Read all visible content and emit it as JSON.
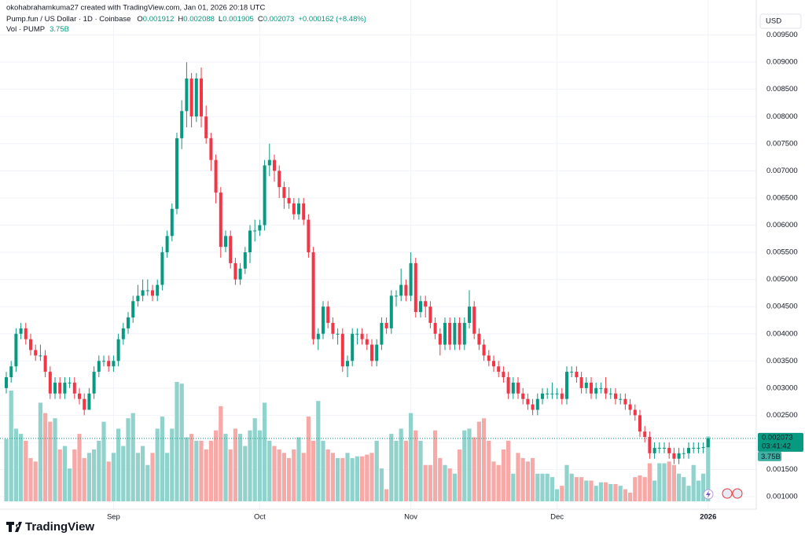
{
  "chart_data": {
    "type": "candlestick",
    "header": {
      "watermark": "okohabrahamkuma27 created with TradingView.com, Jan 01, 2026 20:18 UTC",
      "symbol": "Pump.fun / US Dollar · 1D · Coinbase",
      "ohlc": [
        {
          "label": "O",
          "value": "0.001912"
        },
        {
          "label": "H",
          "value": "0.002088"
        },
        {
          "label": "L",
          "value": "0.001905"
        },
        {
          "label": "C",
          "value": "0.002073"
        }
      ],
      "change": "+0.000162 (+8.48%)",
      "volume_name": "Vol · PUMP",
      "volume_value": "3.75B"
    },
    "currency": "USD",
    "brand": "TradingView",
    "up_color": "#089981",
    "down_color": "#f23645",
    "up_volume_color": "#92d2cc",
    "down_volume_color": "#f7a9a7",
    "grid": true,
    "ylim": [
      0.00077,
      0.01
    ],
    "yticks": [
      {
        "value": 0.001,
        "label": "0.001000"
      },
      {
        "value": 0.0015,
        "label": "0.001500"
      },
      {
        "value": 0.002,
        "label": "0.002000"
      },
      {
        "value": 0.0025,
        "label": "0.002500"
      },
      {
        "value": 0.003,
        "label": "0.003000"
      },
      {
        "value": 0.0035,
        "label": "0.003500"
      },
      {
        "value": 0.004,
        "label": "0.004000"
      },
      {
        "value": 0.0045,
        "label": "0.004500"
      },
      {
        "value": 0.005,
        "label": "0.005000"
      },
      {
        "value": 0.0055,
        "label": "0.005500"
      },
      {
        "value": 0.006,
        "label": "0.006000"
      },
      {
        "value": 0.0065,
        "label": "0.006500"
      },
      {
        "value": 0.007,
        "label": "0.007000"
      },
      {
        "value": 0.0075,
        "label": "0.007500"
      },
      {
        "value": 0.008,
        "label": "0.008000"
      },
      {
        "value": 0.0085,
        "label": "0.008500"
      },
      {
        "value": 0.009,
        "label": "0.009000"
      },
      {
        "value": 0.0095,
        "label": "0.009500"
      }
    ],
    "xticks": [
      {
        "value": 22,
        "label": "Sep"
      },
      {
        "value": 52,
        "label": "Oct"
      },
      {
        "value": 83,
        "label": "Nov"
      },
      {
        "value": 113,
        "label": "Dec"
      },
      {
        "value": 144,
        "label": "2026"
      }
    ],
    "last_price_label": "0.002073",
    "countdown": "03:41:42",
    "last_volume_label": "3.75B",
    "candles": [
      [
        0.003,
        0.0033,
        0.0029,
        0.0032
      ],
      [
        0.0032,
        0.0035,
        0.0031,
        0.0034
      ],
      [
        0.0034,
        0.0041,
        0.0033,
        0.004
      ],
      [
        0.004,
        0.0042,
        0.0039,
        0.0041
      ],
      [
        0.0041,
        0.0042,
        0.0038,
        0.0039
      ],
      [
        0.0039,
        0.004,
        0.0036,
        0.0037
      ],
      [
        0.0037,
        0.0038,
        0.0035,
        0.0036
      ],
      [
        0.0036,
        0.0038,
        0.0035,
        0.0036
      ],
      [
        0.0036,
        0.0037,
        0.0032,
        0.0033
      ],
      [
        0.0033,
        0.0034,
        0.0028,
        0.0029
      ],
      [
        0.0029,
        0.0032,
        0.0028,
        0.0031
      ],
      [
        0.0031,
        0.0032,
        0.0028,
        0.0029
      ],
      [
        0.0029,
        0.0032,
        0.0028,
        0.0031
      ],
      [
        0.0031,
        0.0032,
        0.003,
        0.0031
      ],
      [
        0.0031,
        0.0032,
        0.0028,
        0.0029
      ],
      [
        0.0029,
        0.003,
        0.0027,
        0.0028
      ],
      [
        0.0028,
        0.0029,
        0.0025,
        0.0026
      ],
      [
        0.0026,
        0.003,
        0.0026,
        0.0029
      ],
      [
        0.0029,
        0.0034,
        0.0028,
        0.0033
      ],
      [
        0.0033,
        0.0036,
        0.0032,
        0.0035
      ],
      [
        0.0035,
        0.0036,
        0.0034,
        0.0035
      ],
      [
        0.0035,
        0.0036,
        0.0033,
        0.0034
      ],
      [
        0.0034,
        0.0036,
        0.0033,
        0.0035
      ],
      [
        0.0035,
        0.004,
        0.0034,
        0.0039
      ],
      [
        0.0039,
        0.0042,
        0.0038,
        0.0041
      ],
      [
        0.0041,
        0.0044,
        0.004,
        0.0043
      ],
      [
        0.0043,
        0.0047,
        0.0042,
        0.0046
      ],
      [
        0.0046,
        0.0049,
        0.0045,
        0.0047
      ],
      [
        0.0047,
        0.005,
        0.0046,
        0.0048
      ],
      [
        0.0048,
        0.005,
        0.0047,
        0.0048
      ],
      [
        0.0048,
        0.0049,
        0.0046,
        0.0047
      ],
      [
        0.0047,
        0.005,
        0.0046,
        0.0049
      ],
      [
        0.0049,
        0.0056,
        0.0048,
        0.0055
      ],
      [
        0.0055,
        0.0059,
        0.0054,
        0.0058
      ],
      [
        0.0058,
        0.0064,
        0.0057,
        0.0063
      ],
      [
        0.0063,
        0.0077,
        0.0062,
        0.0076
      ],
      [
        0.0076,
        0.0083,
        0.0074,
        0.0081
      ],
      [
        0.0081,
        0.009,
        0.0078,
        0.0087
      ],
      [
        0.0087,
        0.0088,
        0.0078,
        0.008
      ],
      [
        0.008,
        0.0088,
        0.0079,
        0.0087
      ],
      [
        0.0087,
        0.0089,
        0.0078,
        0.008
      ],
      [
        0.008,
        0.0082,
        0.0075,
        0.0076
      ],
      [
        0.0076,
        0.0077,
        0.007,
        0.0072
      ],
      [
        0.0072,
        0.0073,
        0.0064,
        0.0066
      ],
      [
        0.0066,
        0.0067,
        0.0054,
        0.0056
      ],
      [
        0.0056,
        0.0059,
        0.0055,
        0.0058
      ],
      [
        0.0058,
        0.0059,
        0.0052,
        0.0053
      ],
      [
        0.0053,
        0.0054,
        0.0049,
        0.005
      ],
      [
        0.005,
        0.0053,
        0.0049,
        0.0052
      ],
      [
        0.0052,
        0.0056,
        0.0051,
        0.0055
      ],
      [
        0.0055,
        0.006,
        0.0053,
        0.0059
      ],
      [
        0.0059,
        0.0061,
        0.0057,
        0.0059
      ],
      [
        0.0059,
        0.0061,
        0.0058,
        0.006
      ],
      [
        0.006,
        0.0072,
        0.0059,
        0.0071
      ],
      [
        0.0071,
        0.0075,
        0.0069,
        0.0072
      ],
      [
        0.0072,
        0.0073,
        0.0068,
        0.007
      ],
      [
        0.007,
        0.0071,
        0.0065,
        0.0067
      ],
      [
        0.0067,
        0.0068,
        0.0063,
        0.0065
      ],
      [
        0.0065,
        0.0067,
        0.0063,
        0.0064
      ],
      [
        0.0064,
        0.0065,
        0.0061,
        0.0062
      ],
      [
        0.0062,
        0.0065,
        0.0061,
        0.0064
      ],
      [
        0.0064,
        0.0065,
        0.006,
        0.0061
      ],
      [
        0.0061,
        0.0062,
        0.0054,
        0.0055
      ],
      [
        0.0055,
        0.0056,
        0.0038,
        0.0039
      ],
      [
        0.0039,
        0.0041,
        0.0037,
        0.004
      ],
      [
        0.004,
        0.0046,
        0.0039,
        0.0045
      ],
      [
        0.0045,
        0.0046,
        0.0041,
        0.0042
      ],
      [
        0.0042,
        0.0043,
        0.0039,
        0.004
      ],
      [
        0.004,
        0.0041,
        0.0038,
        0.004
      ],
      [
        0.004,
        0.0041,
        0.0033,
        0.0034
      ],
      [
        0.0034,
        0.0036,
        0.0032,
        0.0035
      ],
      [
        0.0035,
        0.0041,
        0.0034,
        0.004
      ],
      [
        0.004,
        0.0041,
        0.0038,
        0.004
      ],
      [
        0.004,
        0.0041,
        0.0038,
        0.0039
      ],
      [
        0.0039,
        0.004,
        0.0037,
        0.0038
      ],
      [
        0.0038,
        0.0039,
        0.0034,
        0.0035
      ],
      [
        0.0035,
        0.0039,
        0.0034,
        0.0038
      ],
      [
        0.0038,
        0.0043,
        0.0037,
        0.0042
      ],
      [
        0.0042,
        0.0043,
        0.004,
        0.0041
      ],
      [
        0.0041,
        0.0048,
        0.004,
        0.0047
      ],
      [
        0.0047,
        0.0048,
        0.0045,
        0.0047
      ],
      [
        0.0047,
        0.0052,
        0.0046,
        0.0049
      ],
      [
        0.0049,
        0.005,
        0.0046,
        0.0047
      ],
      [
        0.0047,
        0.0055,
        0.0046,
        0.0053
      ],
      [
        0.0053,
        0.0054,
        0.0043,
        0.0044
      ],
      [
        0.0044,
        0.0047,
        0.0043,
        0.0046
      ],
      [
        0.0046,
        0.0047,
        0.0043,
        0.0045
      ],
      [
        0.0045,
        0.0046,
        0.0041,
        0.0042
      ],
      [
        0.0042,
        0.0043,
        0.0039,
        0.004
      ],
      [
        0.004,
        0.0041,
        0.0036,
        0.0038
      ],
      [
        0.0038,
        0.0043,
        0.0037,
        0.0042
      ],
      [
        0.0042,
        0.0043,
        0.0037,
        0.0038
      ],
      [
        0.0038,
        0.0043,
        0.0037,
        0.0042
      ],
      [
        0.0042,
        0.0043,
        0.0037,
        0.0038
      ],
      [
        0.0038,
        0.0043,
        0.0037,
        0.0042
      ],
      [
        0.0042,
        0.0048,
        0.0041,
        0.0045
      ],
      [
        0.0045,
        0.0046,
        0.0039,
        0.004
      ],
      [
        0.004,
        0.0041,
        0.0037,
        0.0038
      ],
      [
        0.0038,
        0.0039,
        0.0035,
        0.0036
      ],
      [
        0.0036,
        0.0037,
        0.0034,
        0.0035
      ],
      [
        0.0035,
        0.0036,
        0.0033,
        0.0034
      ],
      [
        0.0034,
        0.0035,
        0.0032,
        0.0033
      ],
      [
        0.0033,
        0.0034,
        0.0031,
        0.0032
      ],
      [
        0.0032,
        0.0033,
        0.0028,
        0.0029
      ],
      [
        0.0029,
        0.0032,
        0.0028,
        0.0031
      ],
      [
        0.0031,
        0.0032,
        0.0028,
        0.0029
      ],
      [
        0.0029,
        0.003,
        0.0027,
        0.0028
      ],
      [
        0.0028,
        0.0029,
        0.0026,
        0.0027
      ],
      [
        0.0027,
        0.0028,
        0.0025,
        0.0026
      ],
      [
        0.0026,
        0.0029,
        0.0025,
        0.0028
      ],
      [
        0.0028,
        0.003,
        0.0027,
        0.0029
      ],
      [
        0.0029,
        0.003,
        0.0028,
        0.0029
      ],
      [
        0.0029,
        0.0031,
        0.0028,
        0.0029
      ],
      [
        0.0029,
        0.003,
        0.0028,
        0.0029
      ],
      [
        0.0029,
        0.003,
        0.0027,
        0.0028
      ],
      [
        0.0028,
        0.0034,
        0.0027,
        0.0033
      ],
      [
        0.0033,
        0.0034,
        0.0032,
        0.0033
      ],
      [
        0.0033,
        0.0034,
        0.0031,
        0.0032
      ],
      [
        0.0032,
        0.0033,
        0.0029,
        0.003
      ],
      [
        0.003,
        0.0032,
        0.0029,
        0.0031
      ],
      [
        0.0031,
        0.0032,
        0.0028,
        0.0029
      ],
      [
        0.0029,
        0.0031,
        0.0028,
        0.003
      ],
      [
        0.003,
        0.0031,
        0.0029,
        0.003
      ],
      [
        0.003,
        0.0032,
        0.0028,
        0.0029
      ],
      [
        0.0029,
        0.003,
        0.0028,
        0.0029
      ],
      [
        0.0029,
        0.003,
        0.0027,
        0.0028
      ],
      [
        0.0028,
        0.0029,
        0.0027,
        0.0028
      ],
      [
        0.0028,
        0.0029,
        0.0026,
        0.0027
      ],
      [
        0.0027,
        0.0028,
        0.0025,
        0.0026
      ],
      [
        0.0026,
        0.0027,
        0.0024,
        0.0025
      ],
      [
        0.0025,
        0.0026,
        0.0021,
        0.0022
      ],
      [
        0.0022,
        0.0023,
        0.002,
        0.0021
      ],
      [
        0.0021,
        0.0022,
        0.0017,
        0.0018
      ],
      [
        0.0018,
        0.002,
        0.0017,
        0.0019
      ],
      [
        0.0019,
        0.002,
        0.0018,
        0.0019
      ],
      [
        0.0019,
        0.002,
        0.0018,
        0.0019
      ],
      [
        0.0019,
        0.002,
        0.0017,
        0.0018
      ],
      [
        0.0018,
        0.0019,
        0.0016,
        0.0017
      ],
      [
        0.0017,
        0.0019,
        0.0016,
        0.0018
      ],
      [
        0.0018,
        0.0019,
        0.0017,
        0.0018
      ],
      [
        0.0018,
        0.002,
        0.0017,
        0.0019
      ],
      [
        0.0019,
        0.002,
        0.0018,
        0.0019
      ],
      [
        0.0019,
        0.002,
        0.0018,
        0.0019
      ],
      [
        0.0019,
        0.002,
        0.0018,
        0.001912
      ],
      [
        0.001912,
        0.002088,
        0.001905,
        0.002073
      ]
    ],
    "volume": {
      "values": [
        3.6,
        6.4,
        4.2,
        3.9,
        3.5,
        2.5,
        2.3,
        5.7,
        5.1,
        4.6,
        4.8,
        3.0,
        3.2,
        1.9,
        3.0,
        3.9,
        2.5,
        2.8,
        3.0,
        3.5,
        4.6,
        2.3,
        2.8,
        4.2,
        3.2,
        4.8,
        5.1,
        2.8,
        3.2,
        2.1,
        2.8,
        4.2,
        4.9,
        2.8,
        4.2,
        6.9,
        6.8,
        3.7,
        3.9,
        3.5,
        3.5,
        3.0,
        3.5,
        4.1,
        5.5,
        3.9,
        3.0,
        4.2,
        3.9,
        3.2,
        4.1,
        4.8,
        4.1,
        5.7,
        3.5,
        3.2,
        3.0,
        2.8,
        2.5,
        3.0,
        3.7,
        2.8,
        4.9,
        3.5,
        5.8,
        3.5,
        3.0,
        2.8,
        2.5,
        2.5,
        2.8,
        2.5,
        2.6,
        2.6,
        2.7,
        2.8,
        3.5,
        1.9,
        0.7,
        3.9,
        3.5,
        4.2,
        3.5,
        5.1,
        4.1,
        3.5,
        2.1,
        2.1,
        4.1,
        2.5,
        2.1,
        1.9,
        1.6,
        3.0,
        4.1,
        4.2,
        3.7,
        4.6,
        4.8,
        3.5,
        2.3,
        2.1,
        3.0,
        3.5,
        1.6,
        2.8,
        2.5,
        2.3,
        2.5,
        1.6,
        1.6,
        1.6,
        1.4,
        0.7,
        0.9,
        2.1,
        1.6,
        1.4,
        1.4,
        1.2,
        1.2,
        0.9,
        1.1,
        1.1,
        1.0,
        1.0,
        0.9,
        0.7,
        0.5,
        1.4,
        1.5,
        1.4,
        2.2,
        1.2,
        2.2,
        2.2,
        2.3,
        2.1,
        1.6,
        1.4,
        0.9,
        2.1,
        1.2,
        1.6,
        3.75
      ]
    }
  }
}
